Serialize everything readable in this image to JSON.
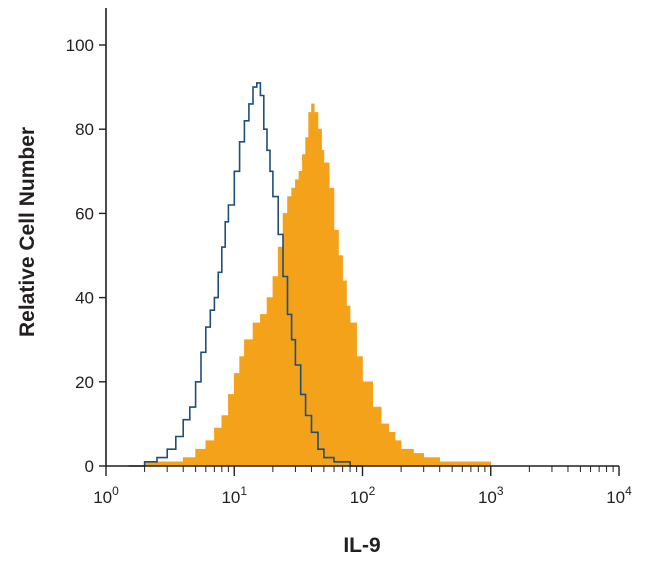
{
  "chart_data": {
    "type": "area",
    "xlabel": "IL-9",
    "ylabel": "Relative Cell Number",
    "xscale": "log",
    "xlim": [
      1,
      10000
    ],
    "ylim": [
      0,
      100
    ],
    "grid": false,
    "legend": "none",
    "y_ticks": [
      "0",
      "20",
      "40",
      "60",
      "80",
      "100"
    ],
    "x_ticks": [
      {
        "base": "10",
        "exp": "0"
      },
      {
        "base": "10",
        "exp": "1"
      },
      {
        "base": "10",
        "exp": "2"
      },
      {
        "base": "10",
        "exp": "3"
      },
      {
        "base": "10",
        "exp": "4"
      }
    ],
    "series": [
      {
        "style": "outline",
        "color": "#1f4e79",
        "x": [
          1.5,
          2,
          2.5,
          3,
          3.5,
          4,
          4.5,
          5,
          5.5,
          6,
          6.5,
          7,
          7.5,
          8,
          8.5,
          9,
          10,
          11,
          12,
          13,
          14,
          15,
          16,
          17,
          18,
          19,
          20,
          22,
          24,
          26,
          28,
          30,
          33,
          36,
          40,
          45,
          50,
          60,
          70,
          80,
          90,
          100
        ],
        "values": [
          0,
          1,
          2,
          4,
          7,
          11,
          14,
          20,
          27,
          33,
          37,
          40,
          46,
          52,
          58,
          62,
          70,
          77,
          82,
          86,
          90,
          91,
          88,
          80,
          75,
          70,
          64,
          55,
          45,
          36,
          30,
          24,
          17,
          12,
          8,
          4,
          2,
          1,
          1,
          0,
          0,
          0
        ]
      },
      {
        "style": "filled",
        "color": "#f5a21b",
        "x": [
          2,
          3,
          4,
          5,
          6,
          7,
          8,
          9,
          10,
          11,
          12,
          14,
          16,
          18,
          20,
          22,
          24,
          26,
          28,
          30,
          32,
          34,
          36,
          38,
          40,
          42,
          45,
          48,
          50,
          55,
          60,
          65,
          70,
          75,
          80,
          90,
          100,
          120,
          140,
          160,
          180,
          200,
          250,
          300,
          400,
          500,
          700,
          1000,
          2000,
          5000,
          10000
        ],
        "values": [
          1,
          1,
          2,
          4,
          6,
          9,
          12,
          17,
          22,
          26,
          30,
          34,
          36,
          40,
          45,
          52,
          60,
          64,
          66,
          68,
          70,
          74,
          78,
          84,
          86,
          84,
          80,
          75,
          72,
          66,
          56,
          50,
          44,
          38,
          34,
          26,
          20,
          14,
          10,
          8,
          6,
          4,
          3,
          2,
          1,
          1,
          1,
          0,
          0,
          0,
          0
        ]
      }
    ]
  }
}
